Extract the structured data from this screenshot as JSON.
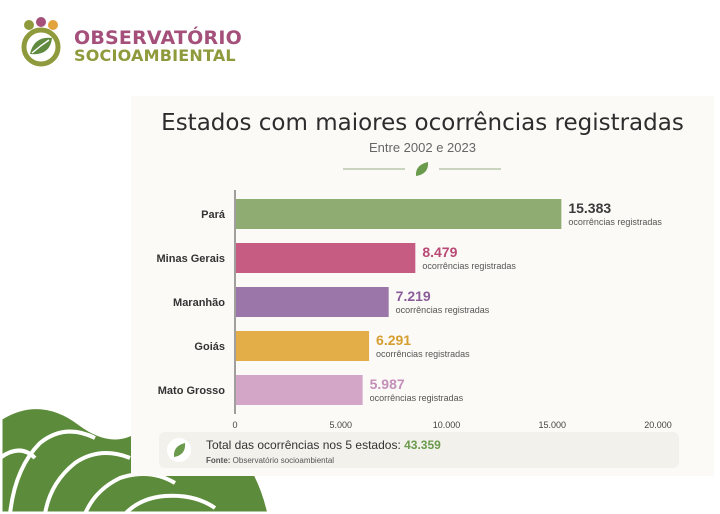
{
  "brand": {
    "line1": "OBSERVATÓRIO",
    "line2": "SOCIOAMBIENTAL"
  },
  "icons": {
    "logo": "leaf-people-logo-icon",
    "divider": "leaf-icon",
    "footer": "leaf-icon",
    "decoration": "leaf-pattern-decoration"
  },
  "footer": {
    "total_label": "Total das ocorrências nos 5 estados:",
    "total_value": "43.359",
    "source_label": "Fonte:",
    "source_text": "Observatório socioambiental"
  },
  "chart_data": {
    "type": "bar",
    "orientation": "horizontal",
    "title": "Estados com maiores ocorrências registradas",
    "subtitle": "Entre 2002 e 2023",
    "categories": [
      "Pará",
      "Minas Gerais",
      "Maranhão",
      "Goiás",
      "Mato Grosso"
    ],
    "values": [
      15383,
      8479,
      7219,
      6291,
      5987
    ],
    "value_labels": [
      "15.383",
      "8.479",
      "7.219",
      "6.291",
      "5.987"
    ],
    "value_caption": "ocorrências registradas",
    "bar_colors": [
      "#8fad72",
      "#c75c82",
      "#9a77a8",
      "#e3ad48",
      "#d3a5c6"
    ],
    "label_colors": [
      "#3b3b3b",
      "#b94a75",
      "#8a5d9a",
      "#d69d30",
      "#c48fb8"
    ],
    "xlim": [
      0,
      20000
    ],
    "xticks": [
      0,
      5000,
      10000,
      15000,
      20000
    ],
    "xtick_labels": [
      "0",
      "5.000",
      "10.000",
      "15.000",
      "20.000"
    ],
    "grid": false,
    "legend": "none"
  }
}
